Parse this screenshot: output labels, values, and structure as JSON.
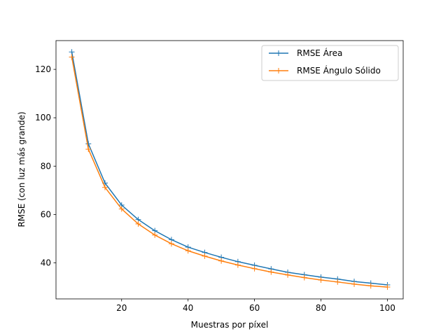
{
  "chart_data": {
    "type": "line",
    "title": "",
    "xlabel": "Muestras por píxel",
    "ylabel": "RMSE (con luz más grande)",
    "xlim": [
      0.25,
      104.75
    ],
    "ylim": [
      25.1,
      131.9
    ],
    "xticks": [
      20,
      40,
      60,
      80,
      100
    ],
    "yticks": [
      40,
      60,
      80,
      100,
      120
    ],
    "grid": false,
    "legend_position": "top-right",
    "marker": "+",
    "x": [
      5,
      10,
      15,
      20,
      25,
      30,
      35,
      40,
      45,
      50,
      55,
      60,
      65,
      70,
      75,
      80,
      85,
      90,
      95,
      100
    ],
    "series": [
      {
        "name": "RMSE Área",
        "color": "#1f77b4",
        "values": [
          127.2,
          89.2,
          73.0,
          63.9,
          57.9,
          53.3,
          49.6,
          46.5,
          44.3,
          42.3,
          40.5,
          39.0,
          37.5,
          36.1,
          35.1,
          34.1,
          33.3,
          32.3,
          31.6,
          30.9
        ]
      },
      {
        "name": "RMSE Ángulo Sólido",
        "color": "#ff7f0e",
        "values": [
          125.1,
          87.0,
          71.2,
          62.3,
          56.1,
          51.5,
          47.9,
          45.0,
          42.8,
          40.8,
          39.1,
          37.6,
          36.2,
          35.0,
          33.9,
          32.9,
          32.1,
          31.2,
          30.5,
          30.0
        ]
      }
    ]
  }
}
